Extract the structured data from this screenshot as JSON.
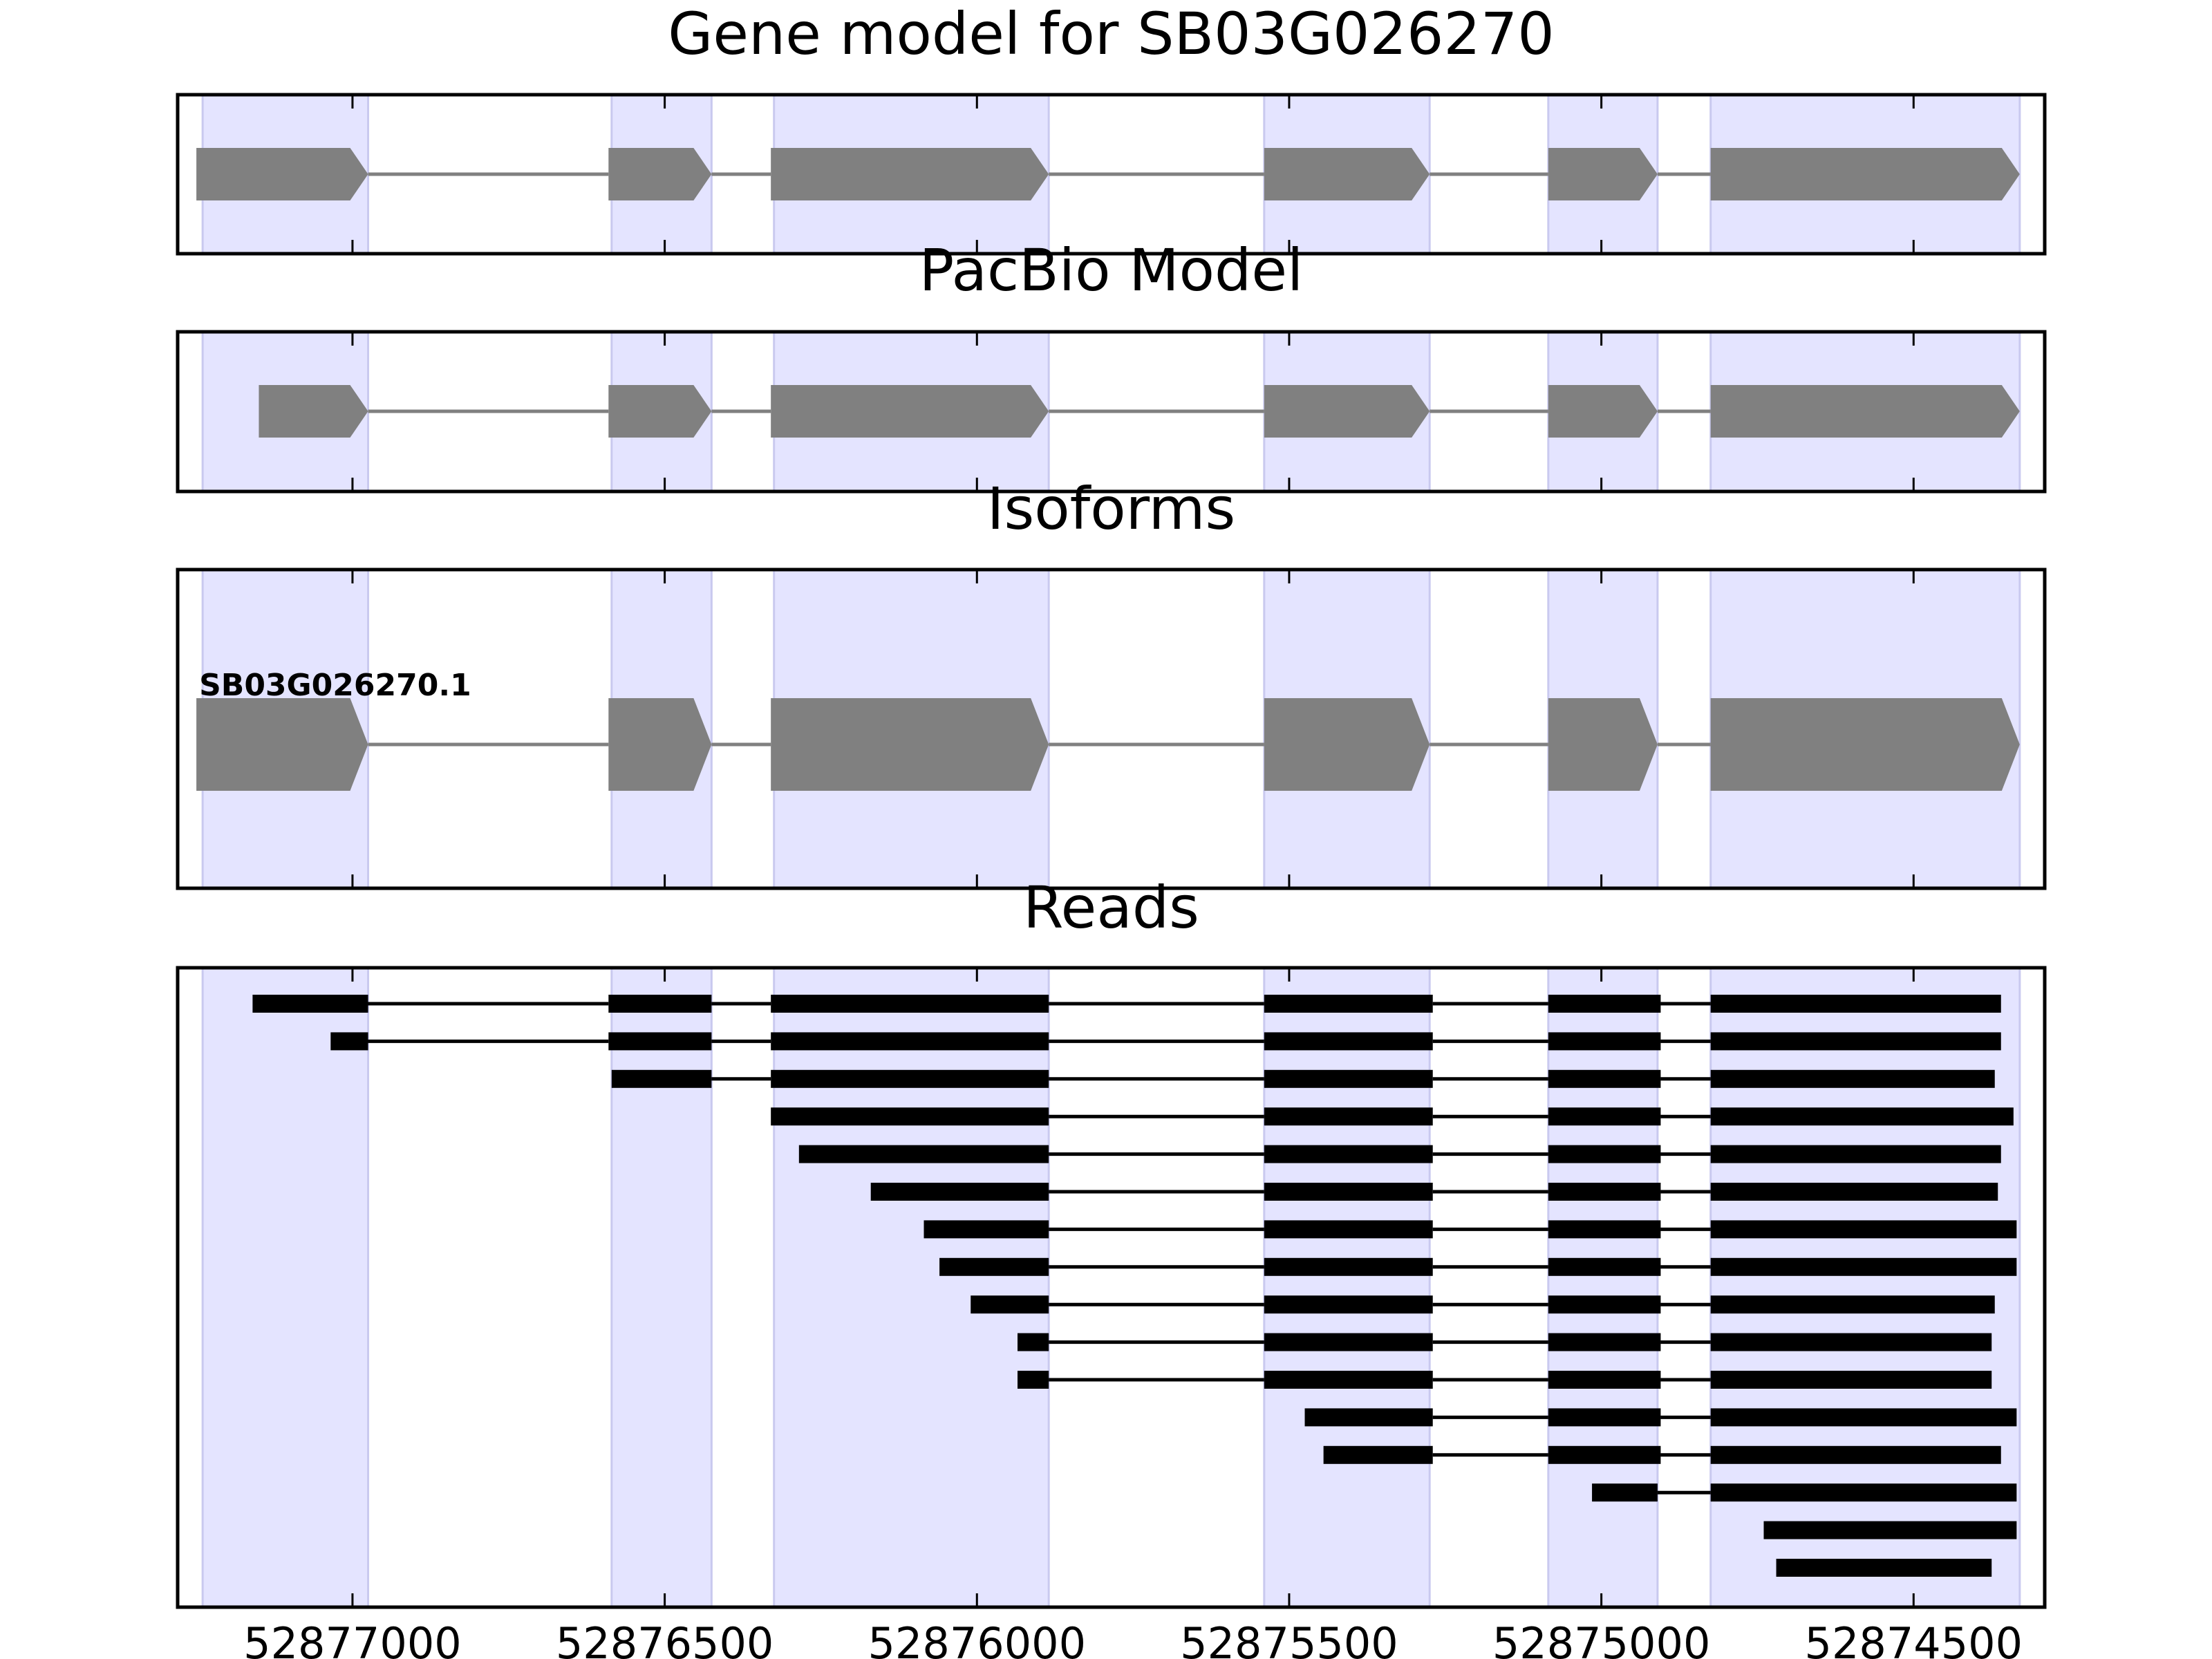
{
  "chart_data": {
    "type": "gene-track",
    "x_axis": {
      "reversed": true,
      "range": [
        52877280,
        52874290
      ],
      "ticks": [
        52877000,
        52876500,
        52876000,
        52875500,
        52875000,
        52874500
      ],
      "tick_labels": [
        "52877000",
        "52876500",
        "52876000",
        "52875500",
        "52875000",
        "52874500"
      ]
    },
    "exon_regions": [
      [
        52877240,
        52876975
      ],
      [
        52876585,
        52876425
      ],
      [
        52876325,
        52875885
      ],
      [
        52875540,
        52875275
      ],
      [
        52875085,
        52874910
      ],
      [
        52874825,
        52874330
      ]
    ],
    "panels": [
      {
        "title": "Gene model for SB03G026270",
        "type": "gene-model",
        "color": "#808080",
        "exons": [
          [
            52877250,
            52876975
          ],
          [
            52876590,
            52876425
          ],
          [
            52876330,
            52875885
          ],
          [
            52875540,
            52875275
          ],
          [
            52875085,
            52874910
          ],
          [
            52874825,
            52874330
          ]
        ]
      },
      {
        "title": "PacBio Model",
        "type": "gene-model",
        "color": "#808080",
        "exons": [
          [
            52877150,
            52876975
          ],
          [
            52876590,
            52876425
          ],
          [
            52876330,
            52875885
          ],
          [
            52875540,
            52875275
          ],
          [
            52875085,
            52874910
          ],
          [
            52874825,
            52874330
          ]
        ]
      },
      {
        "title": "Isoforms",
        "type": "isoforms",
        "color": "#808080",
        "isoforms": [
          {
            "label": "SB03G026270.1",
            "exons": [
              [
                52877250,
                52876975
              ],
              [
                52876590,
                52876425
              ],
              [
                52876330,
                52875885
              ],
              [
                52875540,
                52875275
              ],
              [
                52875085,
                52874910
              ],
              [
                52874825,
                52874330
              ]
            ]
          }
        ]
      },
      {
        "title": "Reads",
        "type": "reads",
        "color": "#000000",
        "reads": [
          [
            [
              52877160,
              52876975
            ],
            [
              52876590,
              52876425
            ],
            [
              52876330,
              52875885
            ],
            [
              52875540,
              52875270
            ],
            [
              52875085,
              52874905
            ],
            [
              52874825,
              52874360
            ]
          ],
          [
            [
              52877035,
              52876975
            ],
            [
              52876590,
              52876425
            ],
            [
              52876330,
              52875885
            ],
            [
              52875540,
              52875270
            ],
            [
              52875085,
              52874905
            ],
            [
              52874825,
              52874360
            ]
          ],
          [
            [
              52876585,
              52876425
            ],
            [
              52876330,
              52875885
            ],
            [
              52875540,
              52875270
            ],
            [
              52875085,
              52874905
            ],
            [
              52874825,
              52874370
            ]
          ],
          [
            [
              52876330,
              52875885
            ],
            [
              52875540,
              52875270
            ],
            [
              52875085,
              52874905
            ],
            [
              52874825,
              52874340
            ]
          ],
          [
            [
              52876285,
              52875885
            ],
            [
              52875540,
              52875270
            ],
            [
              52875085,
              52874905
            ],
            [
              52874825,
              52874360
            ]
          ],
          [
            [
              52876170,
              52875885
            ],
            [
              52875540,
              52875270
            ],
            [
              52875085,
              52874905
            ],
            [
              52874825,
              52874365
            ]
          ],
          [
            [
              52876085,
              52875885
            ],
            [
              52875540,
              52875270
            ],
            [
              52875085,
              52874905
            ],
            [
              52874825,
              52874335
            ]
          ],
          [
            [
              52876060,
              52875885
            ],
            [
              52875540,
              52875270
            ],
            [
              52875085,
              52874905
            ],
            [
              52874825,
              52874335
            ]
          ],
          [
            [
              52876010,
              52875885
            ],
            [
              52875540,
              52875270
            ],
            [
              52875085,
              52874905
            ],
            [
              52874825,
              52874370
            ]
          ],
          [
            [
              52875935,
              52875885
            ],
            [
              52875540,
              52875270
            ],
            [
              52875085,
              52874905
            ],
            [
              52874825,
              52874375
            ]
          ],
          [
            [
              52875935,
              52875885
            ],
            [
              52875540,
              52875270
            ],
            [
              52875085,
              52874905
            ],
            [
              52874825,
              52874375
            ]
          ],
          [
            [
              52875475,
              52875270
            ],
            [
              52875085,
              52874905
            ],
            [
              52874825,
              52874335
            ]
          ],
          [
            [
              52875445,
              52875270
            ],
            [
              52875085,
              52874905
            ],
            [
              52874825,
              52874360
            ]
          ],
          [
            [
              52875015,
              52874910
            ],
            [
              52874825,
              52874335
            ]
          ],
          [
            [
              52874740,
              52874335
            ]
          ],
          [
            [
              52874720,
              52874375
            ]
          ]
        ]
      }
    ]
  },
  "colors": {
    "exon_region_fill": "#e4e4ff",
    "exon_region_edge": "#c9c9ef",
    "gene_model": "#808080",
    "intron_line": "#808080",
    "reads": "#000000",
    "frame": "#000000"
  }
}
